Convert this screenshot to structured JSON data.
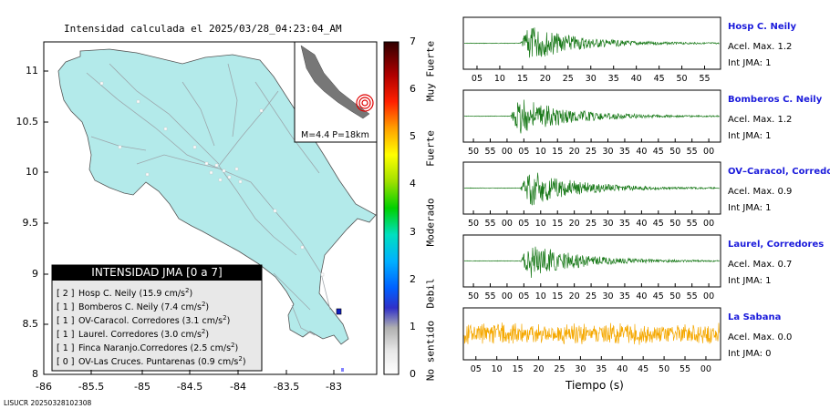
{
  "map": {
    "title": "Intensidad calculada el 2025/03/28_04:23:04_AM",
    "x_ticks": [
      "-86",
      "-85.5",
      "-85",
      "-84.5",
      "-84",
      "-83.5",
      "-83"
    ],
    "y_ticks": [
      "11",
      "10.5",
      "10",
      "9.5",
      "9",
      "8.5",
      "8"
    ],
    "inset_label": "M=4.4 P=18km",
    "footer": "LISUCR 20250328102308",
    "legend_title": "INTENSIDAD JMA [0 a 7]",
    "legend_rows": [
      {
        "code": "[ 2 ]",
        "name": "Hosp C. Neily (15.9 cm/s",
        "sup": "2",
        "end": ")"
      },
      {
        "code": "[ 1 ]",
        "name": "Bomberos C. Neily (7.4 cm/s",
        "sup": "2",
        "end": ")"
      },
      {
        "code": "[ 1 ]",
        "name": "OV-Caracol. Corredores (3.1 cm/s",
        "sup": "2",
        "end": ")"
      },
      {
        "code": "[ 1 ]",
        "name": "Laurel. Corredores (3.0 cm/s",
        "sup": "2",
        "end": ")"
      },
      {
        "code": "[ 1 ]",
        "name": "Finca Naranjo.Corredores (2.5 cm/s",
        "sup": "2",
        "end": ")"
      },
      {
        "code": "[ 0 ]",
        "name": "OV-Las Cruces. Puntarenas (0.9 cm/s",
        "sup": "2",
        "end": ")"
      }
    ]
  },
  "colorbar": {
    "ticks": [
      "7",
      "6",
      "5",
      "4",
      "3",
      "2",
      "1",
      "0"
    ],
    "labels": [
      "Muy Fuerte",
      "Fuerte",
      "Moderado",
      "Debil",
      "No sentido"
    ]
  },
  "seismograms": [
    {
      "title": "Hosp C. Neily",
      "accel": "Acel. Max. 1.2",
      "jma": "Int JMA: 1",
      "ticks": [
        "05",
        "10",
        "15",
        "20",
        "25",
        "30",
        "35",
        "40",
        "45",
        "50",
        "55"
      ],
      "color": "#1a7a1a"
    },
    {
      "title": "Bomberos C. Neily",
      "accel": "Acel. Max. 1.2",
      "jma": "Int JMA: 1",
      "ticks": [
        "50",
        "55",
        "00",
        "05",
        "10",
        "15",
        "20",
        "25",
        "30",
        "35",
        "40",
        "45",
        "50",
        "55",
        "00"
      ],
      "color": "#1a7a1a"
    },
    {
      "title": "OV–Caracol, Corredore",
      "accel": "Acel. Max. 0.9",
      "jma": "Int JMA: 1",
      "ticks": [
        "50",
        "55",
        "00",
        "05",
        "10",
        "15",
        "20",
        "25",
        "30",
        "35",
        "40",
        "45",
        "50",
        "55",
        "00"
      ],
      "color": "#1a7a1a"
    },
    {
      "title": "Laurel, Corredores",
      "accel": "Acel. Max. 0.7",
      "jma": "Int JMA: 1",
      "ticks": [
        "50",
        "55",
        "00",
        "05",
        "10",
        "15",
        "20",
        "25",
        "30",
        "35",
        "40",
        "45",
        "50",
        "55",
        "00"
      ],
      "color": "#1a7a1a"
    },
    {
      "title": "La Sabana",
      "accel": "Acel. Max. 0.0",
      "jma": "Int JMA: 0",
      "ticks": [
        "05",
        "10",
        "15",
        "20",
        "25",
        "30",
        "35",
        "40",
        "45",
        "50",
        "55",
        "00"
      ],
      "color": "#f5a800"
    }
  ],
  "time_axis_label": "Tiempo (s)",
  "chart_data": [
    {
      "type": "scatter",
      "title": "Intensidad calculada el 2025/03/28_04:23:04_AM",
      "xlim": [
        -86,
        -82.5
      ],
      "ylim": [
        8,
        11.2
      ],
      "x_ticks": [
        -86,
        -85.5,
        -85,
        -84.5,
        -84,
        -83.5,
        -83
      ],
      "y_ticks": [
        8,
        8.5,
        9,
        9.5,
        10,
        10.5,
        11
      ],
      "stations": [
        {
          "name": "Hosp C. Neily",
          "intensity": 2,
          "pga_cms2": 15.9
        },
        {
          "name": "Bomberos C. Neily",
          "intensity": 1,
          "pga_cms2": 7.4
        },
        {
          "name": "OV-Caracol. Corredores",
          "intensity": 1,
          "pga_cms2": 3.1
        },
        {
          "name": "Laurel. Corredores",
          "intensity": 1,
          "pga_cms2": 3.0
        },
        {
          "name": "Finca Naranjo.Corredores",
          "intensity": 1,
          "pga_cms2": 2.5
        },
        {
          "name": "OV-Las Cruces. Puntarenas",
          "intensity": 0,
          "pga_cms2": 0.9
        }
      ],
      "epicenter": {
        "lon": -82.96,
        "lat": 8.62,
        "magnitude": 4.4,
        "depth_km": 18
      },
      "colorbar_range": [
        0,
        7
      ]
    },
    {
      "type": "line",
      "xlabel": "Tiempo (s)",
      "series": [
        {
          "name": "Hosp C. Neily",
          "peak_accel": 1.2,
          "jma": 1
        },
        {
          "name": "Bomberos C. Neily",
          "peak_accel": 1.2,
          "jma": 1
        },
        {
          "name": "OV–Caracol, Corredore",
          "peak_accel": 0.9,
          "jma": 1
        },
        {
          "name": "Laurel, Corredores",
          "peak_accel": 0.7,
          "jma": 1
        },
        {
          "name": "La Sabana",
          "peak_accel": 0.0,
          "jma": 0
        }
      ]
    }
  ]
}
